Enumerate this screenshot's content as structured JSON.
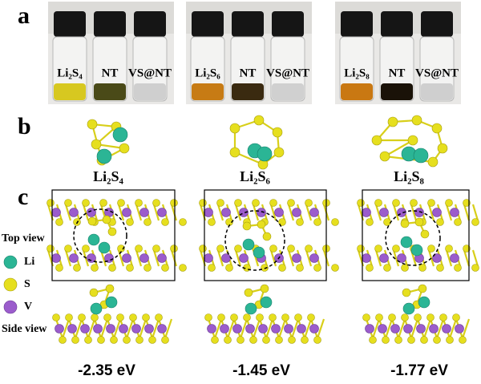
{
  "panel_a": {
    "label": "a",
    "photos": [
      {
        "vials": [
          "Li₂S₄",
          "NT",
          "VS@NT"
        ]
      },
      {
        "vials": [
          "Li₂S₆",
          "NT",
          "VS@NT"
        ]
      },
      {
        "vials": [
          "Li₂S₈",
          "NT",
          "VS@NT"
        ]
      }
    ]
  },
  "panel_b": {
    "label": "b",
    "molecules": [
      "Li₂S₄",
      "Li₂S₆",
      "Li₂S₈"
    ]
  },
  "panel_c": {
    "label": "c",
    "legend": {
      "top_view": "Top view",
      "atoms": [
        "Li",
        "S",
        "V"
      ],
      "side_view": "Side view"
    },
    "energies": [
      "-2.35 eV",
      "-1.45 eV",
      "-1.77 eV"
    ]
  }
}
